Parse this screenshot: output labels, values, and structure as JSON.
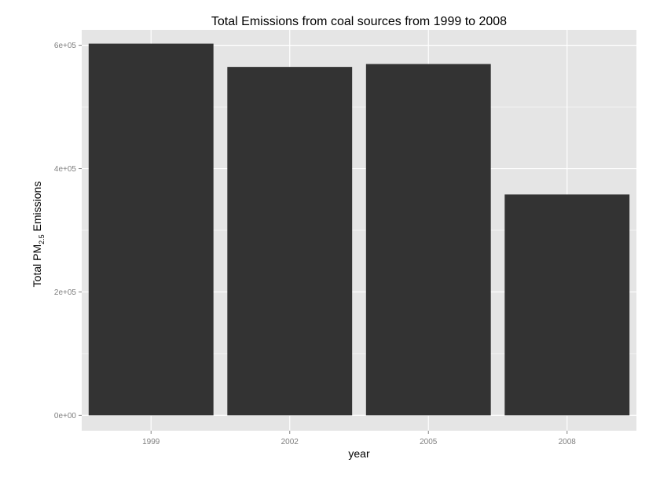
{
  "chart_data": {
    "type": "bar",
    "title": "Total Emissions from coal sources from 1999 to 2008",
    "xlabel": "year",
    "ylabel": {
      "prefix": "Total PM",
      "subscript": "2.5",
      "suffix": " Emissions"
    },
    "categories": [
      "1999",
      "2002",
      "2005",
      "2008"
    ],
    "values": [
      602624,
      564936,
      569654,
      358084
    ],
    "ylim": [
      -25000,
      625000
    ],
    "y_ticks": [
      {
        "value": 0,
        "label": "0e+00"
      },
      {
        "value": 200000,
        "label": "2e+05"
      },
      {
        "value": 400000,
        "label": "4e+05"
      },
      {
        "value": 600000,
        "label": "6e+05"
      }
    ],
    "grid": true,
    "legend": "none",
    "colors": {
      "panel_background": "#e5e5e5",
      "grid_major": "#ffffff",
      "grid_minor": "#f2f2f2",
      "bar_fill": "#333333"
    }
  }
}
